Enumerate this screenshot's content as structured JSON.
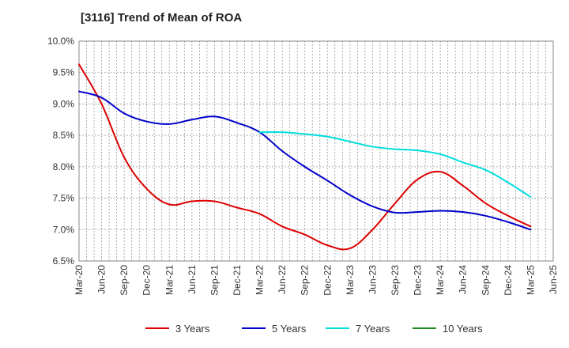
{
  "chart_data": {
    "type": "line",
    "title": "[3116]  Trend of Mean of ROA",
    "xlabel": "",
    "ylabel": "",
    "x_ticks": [
      "Mar-20",
      "Jun-20",
      "Sep-20",
      "Dec-20",
      "Mar-21",
      "Jun-21",
      "Sep-21",
      "Dec-21",
      "Mar-22",
      "Jun-22",
      "Sep-22",
      "Dec-22",
      "Mar-23",
      "Jun-23",
      "Sep-23",
      "Dec-23",
      "Mar-24",
      "Jun-24",
      "Sep-24",
      "Dec-24",
      "Mar-25",
      "Jun-25"
    ],
    "y_ticks": [
      "6.5%",
      "7.0%",
      "7.5%",
      "8.0%",
      "8.5%",
      "9.0%",
      "9.5%",
      "10.0%"
    ],
    "ylim": [
      6.5,
      10.0
    ],
    "grid": true,
    "legend_position": "bottom",
    "series": [
      {
        "name": "3 Years",
        "color": "#dd0000",
        "points": [
          [
            "Mar-20",
            9.63
          ],
          [
            "Jun-20",
            9.0
          ],
          [
            "Sep-20",
            8.15
          ],
          [
            "Dec-20",
            7.65
          ],
          [
            "Mar-21",
            7.4
          ],
          [
            "Jun-21",
            7.45
          ],
          [
            "Sep-21",
            7.45
          ],
          [
            "Dec-21",
            7.35
          ],
          [
            "Mar-22",
            7.25
          ],
          [
            "Jun-22",
            7.05
          ],
          [
            "Sep-22",
            6.92
          ],
          [
            "Dec-22",
            6.75
          ],
          [
            "Mar-23",
            6.7
          ],
          [
            "Jun-23",
            7.0
          ],
          [
            "Sep-23",
            7.42
          ],
          [
            "Dec-23",
            7.8
          ],
          [
            "Mar-24",
            7.92
          ],
          [
            "Jun-24",
            7.7
          ],
          [
            "Sep-24",
            7.42
          ],
          [
            "Dec-24",
            7.22
          ],
          [
            "Mar-25",
            7.05
          ]
        ]
      },
      {
        "name": "5 Years",
        "color": "#0000cc",
        "points": [
          [
            "Mar-20",
            9.2
          ],
          [
            "Jun-20",
            9.1
          ],
          [
            "Sep-20",
            8.85
          ],
          [
            "Dec-20",
            8.72
          ],
          [
            "Mar-21",
            8.68
          ],
          [
            "Jun-21",
            8.75
          ],
          [
            "Sep-21",
            8.8
          ],
          [
            "Dec-21",
            8.7
          ],
          [
            "Mar-22",
            8.55
          ],
          [
            "Jun-22",
            8.25
          ],
          [
            "Sep-22",
            8.0
          ],
          [
            "Dec-22",
            7.78
          ],
          [
            "Mar-23",
            7.55
          ],
          [
            "Jun-23",
            7.37
          ],
          [
            "Sep-23",
            7.27
          ],
          [
            "Dec-23",
            7.28
          ],
          [
            "Mar-24",
            7.3
          ],
          [
            "Jun-24",
            7.28
          ],
          [
            "Sep-24",
            7.22
          ],
          [
            "Dec-24",
            7.12
          ],
          [
            "Mar-25",
            7.0
          ]
        ]
      },
      {
        "name": "7 Years",
        "color": "#00dddd",
        "points": [
          [
            "Mar-22",
            8.55
          ],
          [
            "Jun-22",
            8.55
          ],
          [
            "Sep-22",
            8.52
          ],
          [
            "Dec-22",
            8.48
          ],
          [
            "Mar-23",
            8.4
          ],
          [
            "Jun-23",
            8.32
          ],
          [
            "Sep-23",
            8.28
          ],
          [
            "Dec-23",
            8.26
          ],
          [
            "Mar-24",
            8.2
          ],
          [
            "Jun-24",
            8.07
          ],
          [
            "Sep-24",
            7.95
          ],
          [
            "Dec-24",
            7.75
          ],
          [
            "Mar-25",
            7.52
          ]
        ]
      },
      {
        "name": "10 Years",
        "color": "#228b22",
        "points": []
      }
    ]
  }
}
